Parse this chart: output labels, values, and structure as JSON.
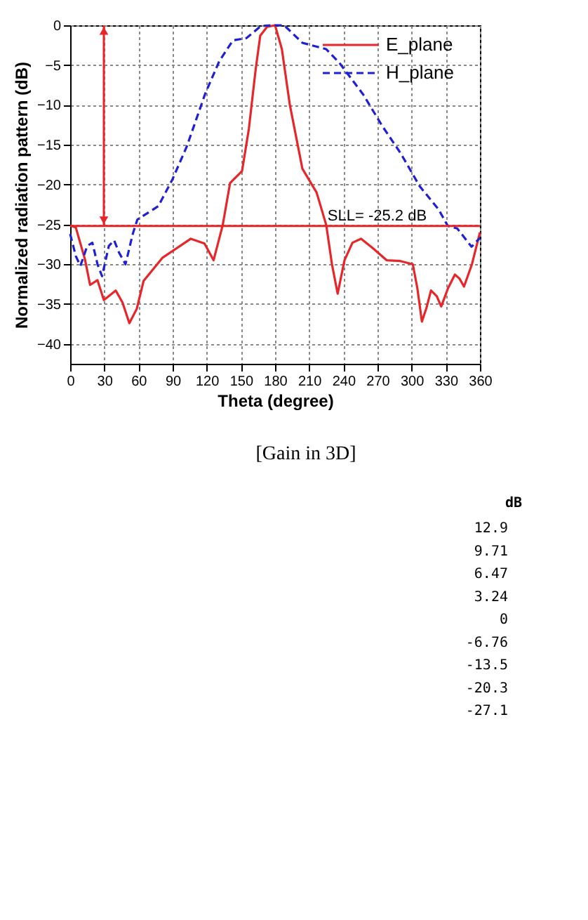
{
  "chart_data": {
    "type": "line",
    "xlabel": "Theta (degree)",
    "ylabel": "Normalized radiation pattern (dB)",
    "xlim": [
      0,
      360
    ],
    "xticks": [
      0,
      30,
      60,
      90,
      120,
      150,
      180,
      210,
      240,
      270,
      300,
      330,
      360
    ],
    "ylim": [
      -42.5,
      0
    ],
    "yticks": [
      0,
      -5,
      -10,
      -15,
      -20,
      -25,
      -30,
      -35,
      -40
    ],
    "grid": true,
    "legend": "top right",
    "marker": "none",
    "series": [
      {
        "name": "E_plane",
        "color": "#e8262a",
        "line_style": "solid",
        "x": [
          0,
          5,
          13,
          17.5,
          24,
          29.6,
          40,
          46,
          52,
          58.5,
          64.5,
          81,
          106,
          118,
          126,
          134,
          140.5,
          151,
          157,
          163,
          167,
          173,
          180,
          186,
          193,
          204,
          216.5,
          225,
          230,
          235,
          241,
          248,
          255.6,
          266,
          278,
          290,
          301,
          305,
          309,
          313,
          317,
          322,
          326,
          332,
          338,
          342,
          346,
          353,
          360
        ],
        "values": [
          -25.1,
          -25.4,
          -29.4,
          -32.6,
          -32,
          -34.5,
          -33.3,
          -34.8,
          -37.4,
          -35.6,
          -32.1,
          -29.2,
          -26.8,
          -27.4,
          -29.5,
          -25.1,
          -19.8,
          -18.3,
          -13,
          -5.5,
          -1.3,
          -0.2,
          0,
          -3,
          -10,
          -18,
          -21,
          -25.1,
          -30,
          -33.7,
          -29.5,
          -27.3,
          -26.8,
          -28,
          -29.5,
          -29.6,
          -30,
          -33,
          -37.2,
          -35.5,
          -33.3,
          -34,
          -35.3,
          -33,
          -31.3,
          -31.8,
          -32.8,
          -30,
          -26
        ]
      },
      {
        "name": "H_plane",
        "color": "#1f1fd6",
        "line_style": "dashed",
        "x": [
          0,
          5,
          9,
          15,
          19.5,
          24,
          28,
          34,
          38.6,
          42.8,
          48.6,
          55,
          59,
          77.5,
          90,
          102.5,
          118.6,
          131,
          143,
          155,
          167.5,
          176,
          188,
          204,
          225,
          237,
          257.5,
          274,
          290.5,
          307,
          323.6,
          331.8,
          340,
          352.6,
          360
        ],
        "values": [
          -26.2,
          -29,
          -30.2,
          -27.7,
          -27.3,
          -30,
          -31.5,
          -27.7,
          -27,
          -28.5,
          -30,
          -26.2,
          -24.4,
          -22.7,
          -19.3,
          -15.2,
          -8.6,
          -4.5,
          -1.9,
          -1.6,
          -0.1,
          0,
          0,
          -2.2,
          -3,
          -4.8,
          -8.7,
          -12.6,
          -16.1,
          -20.2,
          -23.1,
          -25.2,
          -25.5,
          -27.8,
          -26.7
        ]
      }
    ],
    "ref_lines": [
      {
        "axis": "y",
        "value": -25.2,
        "color": "#e8262a",
        "label": "SLL= -25.2 dB"
      }
    ],
    "annotations": [
      "[Gain in 3D]",
      "dB",
      "12.9",
      "9.71",
      "6.47",
      "3.24",
      "0",
      "-6.76",
      "-13.5",
      "-20.3",
      "-27.1"
    ]
  }
}
